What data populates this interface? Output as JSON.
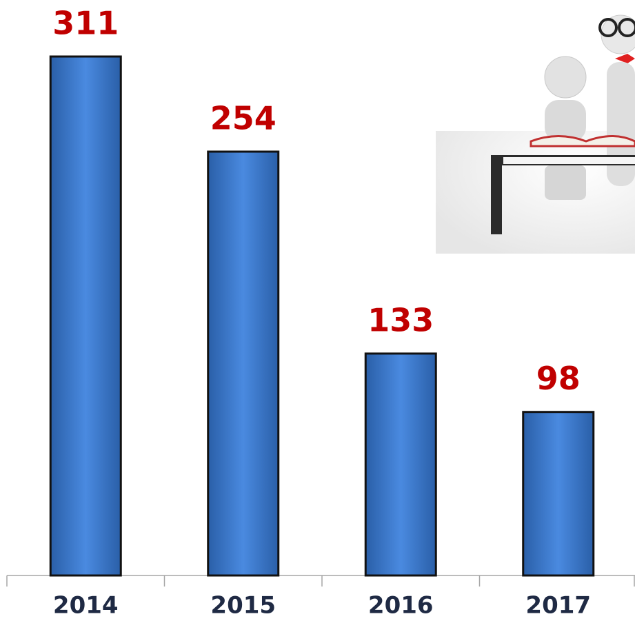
{
  "chart_data": {
    "type": "bar",
    "categories": [
      "2014",
      "2015",
      "2016",
      "2017"
    ],
    "values": [
      311,
      254,
      133,
      98
    ],
    "color": "#3a7bd5"
  }
}
